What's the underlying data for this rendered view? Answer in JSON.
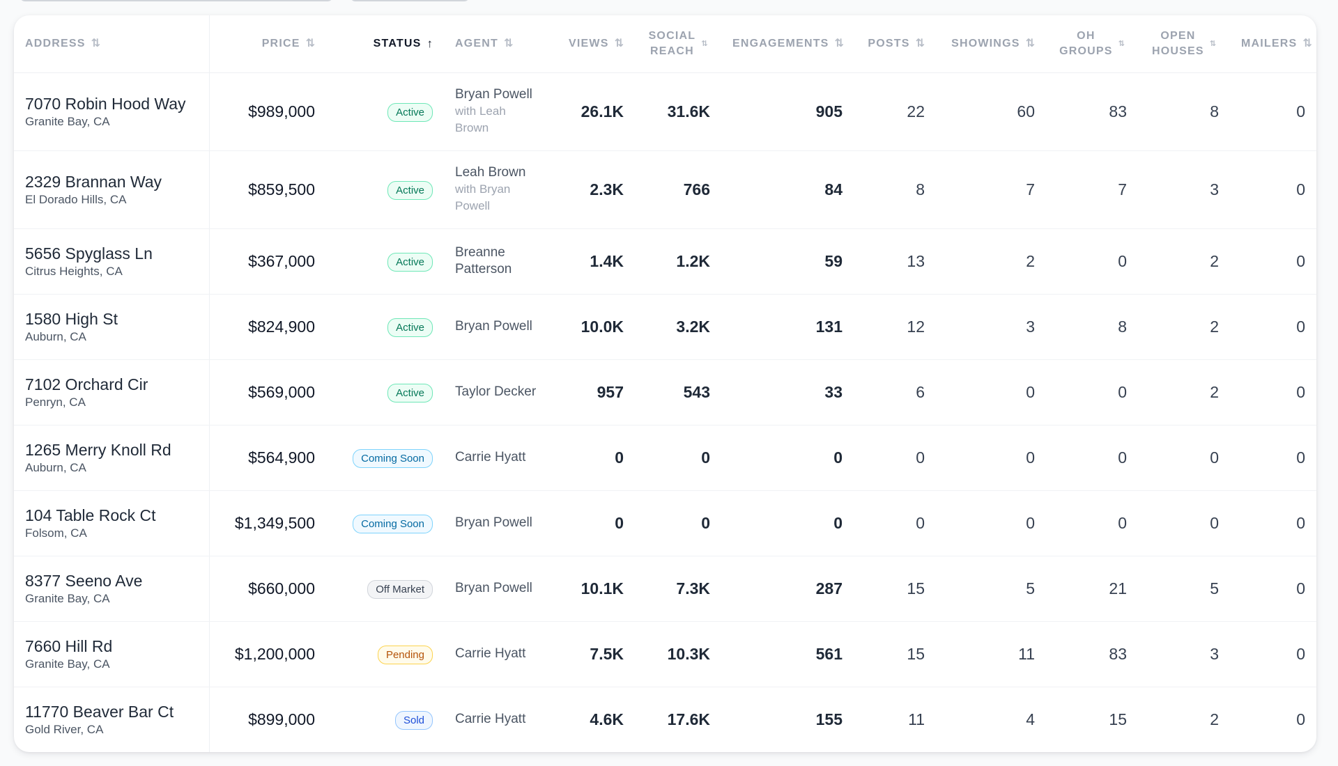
{
  "columns": {
    "address": "ADDRESS",
    "price": "PRICE",
    "status": "STATUS",
    "agent": "AGENT",
    "views": "VIEWS",
    "social_reach_1": "SOCIAL",
    "social_reach_2": "REACH",
    "engagements": "ENGAGEMENTS",
    "posts": "POSTS",
    "showings": "SHOWINGS",
    "oh_groups_1": "OH",
    "oh_groups_2": "GROUPS",
    "open_houses_1": "OPEN",
    "open_houses_2": "HOUSES",
    "mailers": "MAILERS",
    "sort_icon": "⇅",
    "sort_active_icon": "↑"
  },
  "rows": [
    {
      "address": "7070 Robin Hood Way",
      "city": "Granite Bay, CA",
      "price": "$989,000",
      "status": "Active",
      "status_kind": "active",
      "agent": "Bryan Powell",
      "agent_with": "with Leah Brown",
      "views": "26.1K",
      "social_reach": "31.6K",
      "engagements": "905",
      "posts": "22",
      "showings": "60",
      "oh_groups": "83",
      "open_houses": "8",
      "mailers": "0"
    },
    {
      "address": "2329 Brannan Way",
      "city": "El Dorado Hills, CA",
      "price": "$859,500",
      "status": "Active",
      "status_kind": "active",
      "agent": "Leah Brown",
      "agent_with": "with Bryan Powell",
      "views": "2.3K",
      "social_reach": "766",
      "engagements": "84",
      "posts": "8",
      "showings": "7",
      "oh_groups": "7",
      "open_houses": "3",
      "mailers": "0"
    },
    {
      "address": "5656 Spyglass Ln",
      "city": "Citrus Heights, CA",
      "price": "$367,000",
      "status": "Active",
      "status_kind": "active",
      "agent": "Breanne Patterson",
      "agent_with": "",
      "views": "1.4K",
      "social_reach": "1.2K",
      "engagements": "59",
      "posts": "13",
      "showings": "2",
      "oh_groups": "0",
      "open_houses": "2",
      "mailers": "0"
    },
    {
      "address": "1580 High St",
      "city": "Auburn, CA",
      "price": "$824,900",
      "status": "Active",
      "status_kind": "active",
      "agent": "Bryan Powell",
      "agent_with": "",
      "views": "10.0K",
      "social_reach": "3.2K",
      "engagements": "131",
      "posts": "12",
      "showings": "3",
      "oh_groups": "8",
      "open_houses": "2",
      "mailers": "0"
    },
    {
      "address": "7102 Orchard Cir",
      "city": "Penryn, CA",
      "price": "$569,000",
      "status": "Active",
      "status_kind": "active",
      "agent": "Taylor Decker",
      "agent_with": "",
      "views": "957",
      "social_reach": "543",
      "engagements": "33",
      "posts": "6",
      "showings": "0",
      "oh_groups": "0",
      "open_houses": "2",
      "mailers": "0"
    },
    {
      "address": "1265 Merry Knoll Rd",
      "city": "Auburn, CA",
      "price": "$564,900",
      "status": "Coming Soon",
      "status_kind": "coming",
      "agent": "Carrie Hyatt",
      "agent_with": "",
      "views": "0",
      "social_reach": "0",
      "engagements": "0",
      "posts": "0",
      "showings": "0",
      "oh_groups": "0",
      "open_houses": "0",
      "mailers": "0"
    },
    {
      "address": "104 Table Rock Ct",
      "city": "Folsom, CA",
      "price": "$1,349,500",
      "status": "Coming Soon",
      "status_kind": "coming",
      "agent": "Bryan Powell",
      "agent_with": "",
      "views": "0",
      "social_reach": "0",
      "engagements": "0",
      "posts": "0",
      "showings": "0",
      "oh_groups": "0",
      "open_houses": "0",
      "mailers": "0"
    },
    {
      "address": "8377 Seeno Ave",
      "city": "Granite Bay, CA",
      "price": "$660,000",
      "status": "Off Market",
      "status_kind": "off",
      "agent": "Bryan Powell",
      "agent_with": "",
      "views": "10.1K",
      "social_reach": "7.3K",
      "engagements": "287",
      "posts": "15",
      "showings": "5",
      "oh_groups": "21",
      "open_houses": "5",
      "mailers": "0"
    },
    {
      "address": "7660 Hill Rd",
      "city": "Granite Bay, CA",
      "price": "$1,200,000",
      "status": "Pending",
      "status_kind": "pending",
      "agent": "Carrie Hyatt",
      "agent_with": "",
      "views": "7.5K",
      "social_reach": "10.3K",
      "engagements": "561",
      "posts": "15",
      "showings": "11",
      "oh_groups": "83",
      "open_houses": "3",
      "mailers": "0"
    },
    {
      "address": "11770 Beaver Bar Ct",
      "city": "Gold River, CA",
      "price": "$899,000",
      "status": "Sold",
      "status_kind": "sold",
      "agent": "Carrie Hyatt",
      "agent_with": "",
      "views": "4.6K",
      "social_reach": "17.6K",
      "engagements": "155",
      "posts": "11",
      "showings": "4",
      "oh_groups": "15",
      "open_houses": "2",
      "mailers": "0"
    }
  ],
  "colors": {
    "active": "#047857",
    "coming_soon": "#0369a1",
    "off_market": "#374151",
    "pending": "#b45309",
    "sold": "#1d4ed8"
  }
}
